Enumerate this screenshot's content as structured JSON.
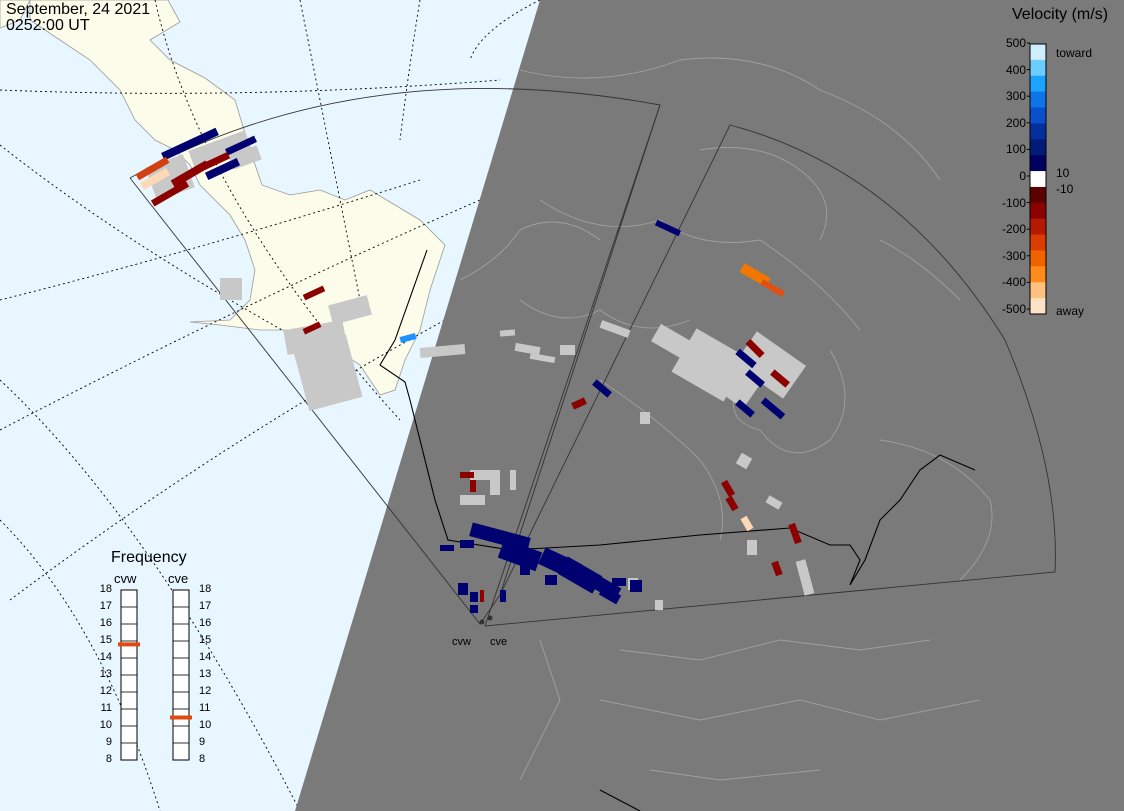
{
  "header": {
    "date": "September, 24 2021",
    "time": "0252:00 UT"
  },
  "velocity_scale": {
    "title": "Velocity (m/s)",
    "ticks": [
      "500",
      "400",
      "300",
      "200",
      "100",
      "0",
      "-100",
      "-200",
      "-300",
      "-400",
      "-500"
    ],
    "inner_ticks": [
      "10",
      "-10"
    ],
    "toward_label": "toward",
    "away_label": "away",
    "colors": [
      "#cfefff",
      "#6ccdff",
      "#1aa3ff",
      "#0f74e8",
      "#0a4fcc",
      "#062f9e",
      "#021a78",
      "#000060",
      "#ffffff",
      "#5c0000",
      "#8c0000",
      "#b51a00",
      "#db3c00",
      "#f06400",
      "#ff8c1a",
      "#ffc080",
      "#ffe1c4"
    ]
  },
  "frequency": {
    "title": "Frequency",
    "radars": [
      {
        "name": "cvw",
        "value_mhz": 14.8
      },
      {
        "name": "cve",
        "value_mhz": 10.5
      }
    ],
    "ticks": [
      "18",
      "17",
      "16",
      "15",
      "14",
      "13",
      "12",
      "11",
      "10",
      "9",
      "8"
    ]
  },
  "map": {
    "radar_labels": [
      "cvw",
      "cve"
    ],
    "colors": {
      "night": "#7a7a7a",
      "day": "#e8f6ff",
      "land_day": "#fcfcea",
      "ground_scatter": "#c8c8c8",
      "border": "#000000"
    }
  }
}
